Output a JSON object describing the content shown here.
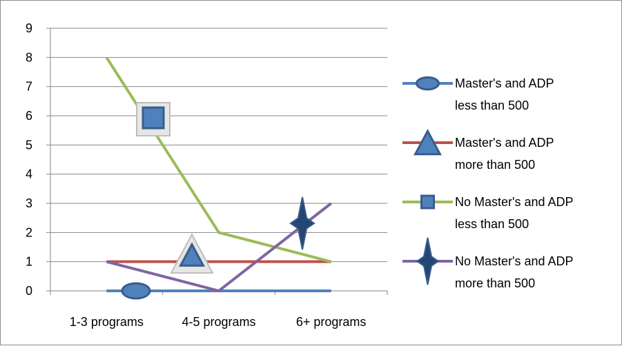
{
  "chart_data": {
    "type": "line",
    "title": "",
    "xlabel": "",
    "ylabel": "",
    "categories": [
      "1-3 programs",
      "4-5 programs",
      "6+ programs"
    ],
    "ylim": [
      0,
      9
    ],
    "yticks": [
      "0",
      "1",
      "2",
      "3",
      "4",
      "5",
      "6",
      "7",
      "8",
      "9"
    ],
    "grid": true,
    "legend_position": "right",
    "series": [
      {
        "name": "Master's and ADP less than 500",
        "legend_lines": [
          "Master's and ADP",
          "less than 500"
        ],
        "values": [
          0,
          0,
          0
        ],
        "color": "#4f81bd",
        "marker": "ellipse"
      },
      {
        "name": "Master's and ADP more than 500",
        "legend_lines": [
          "Master's and ADP",
          "more than 500"
        ],
        "values": [
          1,
          1,
          1
        ],
        "color": "#c0504d",
        "marker": "triangle"
      },
      {
        "name": "No Master's and ADP less than 500",
        "legend_lines": [
          "No Master's and ADP",
          "less than 500"
        ],
        "values": [
          8,
          2,
          1
        ],
        "color": "#9bbb59",
        "marker": "square"
      },
      {
        "name": "No Master's and ADP more than 500",
        "legend_lines": [
          "No Master's and ADP",
          "more than 500"
        ],
        "values": [
          1,
          0,
          3
        ],
        "color": "#8064a2",
        "marker": "star"
      }
    ]
  }
}
